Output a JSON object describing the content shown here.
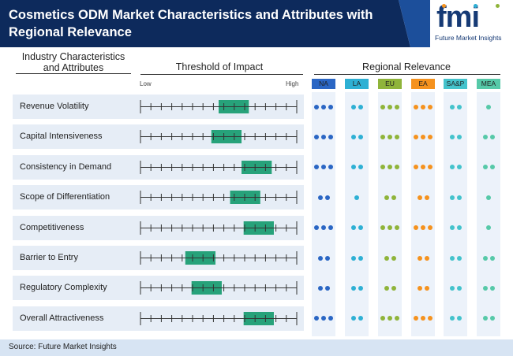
{
  "title": "Cosmetics ODM Market Characteristics and Attributes with Regional Relevance",
  "logo": {
    "mark": "fmi",
    "text": "Future Market Insights"
  },
  "source": "Source: Future Market Insights",
  "colors": {
    "header_dark": "#0d2a5c",
    "header_light": "#1c4f9b",
    "bar": "#27a27a",
    "tick": "#333333",
    "region_NA": "#2a66c4",
    "region_LA": "#2eb0d4",
    "region_EU": "#8fb43a",
    "region_EA": "#f5921e",
    "region_SAP": "#44c3cc",
    "region_MEA": "#56c9a8"
  },
  "columns": {
    "industry": "Industry Characteristics and Attributes",
    "threshold": "Threshold of Impact",
    "regional": "Regional Relevance",
    "low": "Low",
    "high": "High"
  },
  "chart_data": {
    "type": "table",
    "scale": {
      "min": 0,
      "max": 15,
      "low_label": "Low",
      "high_label": "High"
    },
    "regions": [
      "NA",
      "LA",
      "EU",
      "EA",
      "SA&P",
      "MEA"
    ],
    "rows": [
      {
        "label": "Revenue Volatility",
        "range": [
          7.5,
          10.4
        ],
        "relevance": [
          3,
          2,
          3,
          3,
          2,
          1
        ]
      },
      {
        "label": "Capital Intensiveness",
        "range": [
          6.8,
          9.7
        ],
        "relevance": [
          3,
          2,
          3,
          3,
          2,
          2
        ]
      },
      {
        "label": "Consistency in Demand",
        "range": [
          9.7,
          12.6
        ],
        "relevance": [
          3,
          2,
          3,
          3,
          2,
          2
        ]
      },
      {
        "label": "Scope of Differentiation",
        "range": [
          8.6,
          11.5
        ],
        "relevance": [
          2,
          1,
          2,
          2,
          2,
          1
        ]
      },
      {
        "label": "Competitiveness",
        "range": [
          9.9,
          12.8
        ],
        "relevance": [
          3,
          2,
          3,
          3,
          2,
          1
        ]
      },
      {
        "label": "Barrier to Entry",
        "range": [
          4.3,
          7.2
        ],
        "relevance": [
          2,
          2,
          2,
          2,
          2,
          2
        ]
      },
      {
        "label": "Regulatory Complexity",
        "range": [
          4.9,
          7.8
        ],
        "relevance": [
          2,
          2,
          2,
          2,
          2,
          2
        ]
      },
      {
        "label": "Overall Attractiveness",
        "range": [
          9.9,
          12.8
        ],
        "relevance": [
          3,
          2,
          3,
          3,
          2,
          2
        ]
      }
    ]
  }
}
